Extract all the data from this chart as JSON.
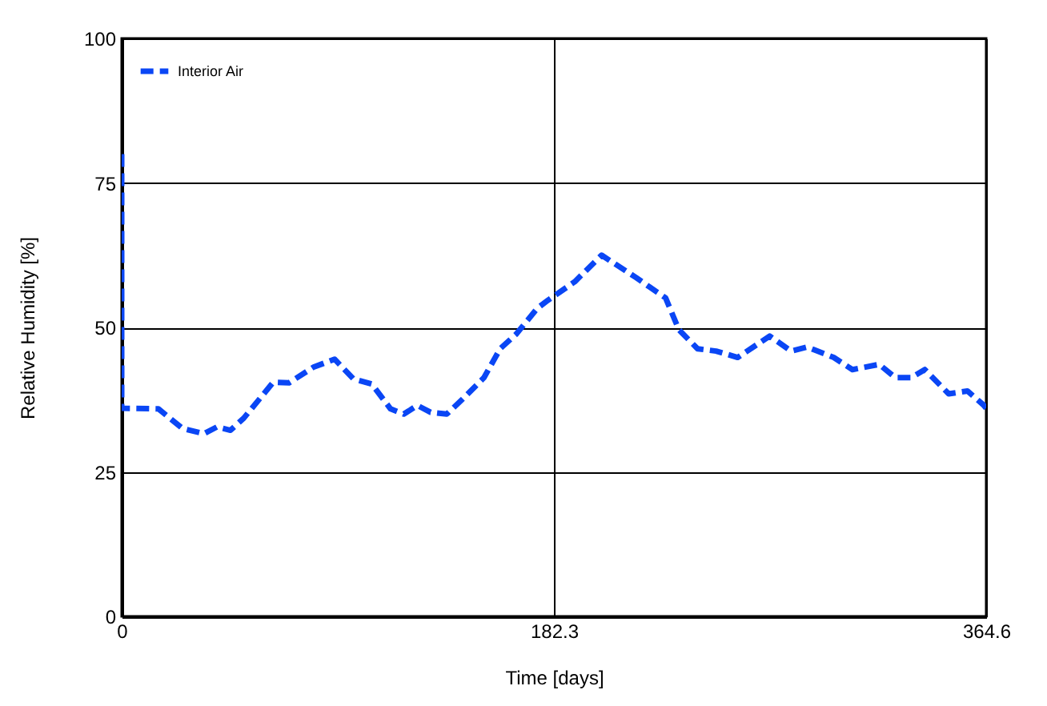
{
  "chart_data": {
    "type": "line",
    "xlabel": "Time [days]",
    "ylabel": "Relative Humidity [%]",
    "xlim": [
      0,
      364.6
    ],
    "xticks": [
      0,
      182.3,
      364.6
    ],
    "ylim": [
      0,
      100
    ],
    "yticks": [
      0,
      25,
      50,
      75,
      100
    ],
    "grid": true,
    "legend": "top left",
    "line_style": "dashed",
    "marker": "none",
    "series": [
      {
        "name": "Interior Air",
        "color": "#0a46f5",
        "x": [
          0,
          0,
          15.5,
          25.7,
          34.7,
          40.3,
          45.9,
          51.5,
          63.9,
          70.6,
          80.8,
          89.8,
          97.7,
          105.5,
          113.4,
          119,
          124.7,
          130.3,
          137.1,
          143.8,
          152.8,
          159.6,
          166.3,
          175.3,
          179.8,
          191.1,
          202.4,
          217,
          222.6,
          229.4,
          235,
          242.9,
          250.7,
          259.8,
          273.3,
          282.3,
          289.1,
          300.3,
          308.2,
          319.5,
          326.3,
          333,
          338.7,
          348.8,
          356.7,
          363.4,
          364.6
        ],
        "values": [
          80,
          36,
          35.9,
          32.5,
          31.6,
          32.8,
          32.2,
          34.3,
          40.5,
          40.4,
          43.1,
          44.5,
          41.1,
          40.2,
          35.9,
          35,
          36.5,
          35.3,
          35,
          37.6,
          41.3,
          46.3,
          48.8,
          53.3,
          54.7,
          57.9,
          62.5,
          58.6,
          57,
          55.1,
          49.6,
          46.3,
          45.9,
          44.8,
          48.5,
          45.9,
          46.6,
          44.8,
          42.7,
          43.6,
          41.3,
          41.3,
          42.7,
          38.5,
          39,
          36.6,
          36
        ]
      }
    ]
  }
}
